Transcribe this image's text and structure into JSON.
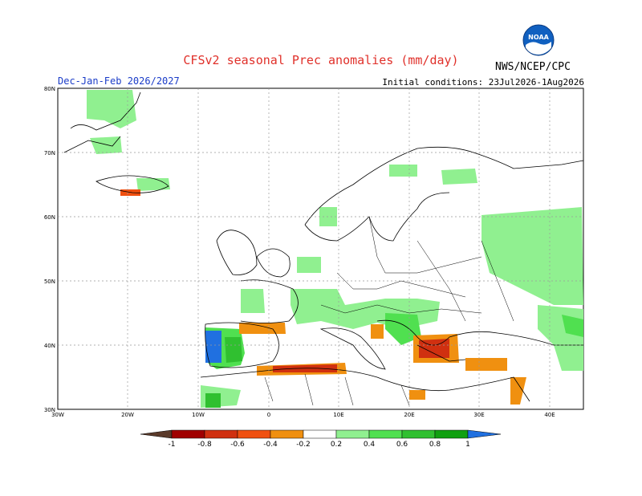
{
  "title": "CFSv2 seasonal Prec anomalies (mm/day)",
  "season": "Dec-Jan-Feb 2026/2027",
  "initial_conditions": "Initial conditions: 23Jul2026-1Aug2026",
  "agency": "NWS/NCEP/CPC",
  "logo_text": "NOAA",
  "map": {
    "lon_ticks": [
      "30W",
      "20W",
      "10W",
      "0",
      "10E",
      "20E",
      "30E",
      "40E"
    ],
    "lat_ticks": [
      "80N",
      "70N",
      "60N",
      "50N",
      "40N",
      "30N"
    ]
  },
  "colorbar": {
    "labels": [
      "-1",
      "-0.8",
      "-0.6",
      "-0.4",
      "-0.2",
      "0.2",
      "0.4",
      "0.6",
      "0.8",
      "1"
    ],
    "colors": [
      "#5a3a2a",
      "#a00000",
      "#d03010",
      "#f05010",
      "#f09010",
      "#ffffff",
      "#90f090",
      "#50e050",
      "#30c030",
      "#10a010",
      "#2070e0"
    ]
  }
}
